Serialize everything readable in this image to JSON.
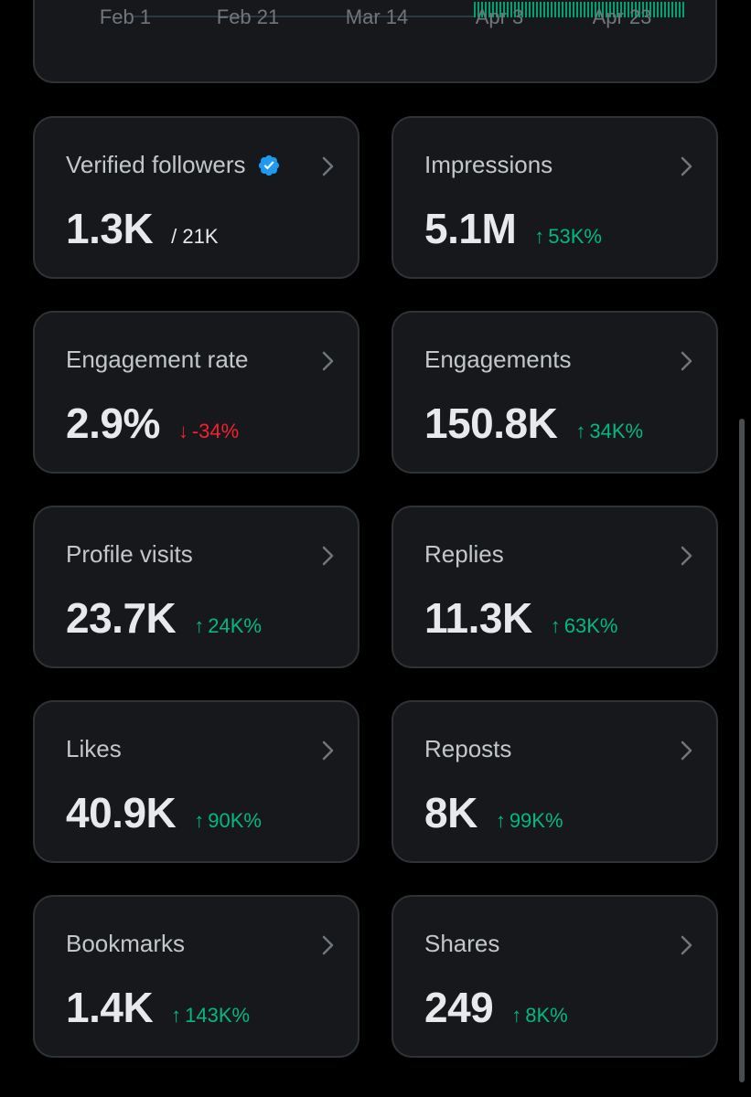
{
  "chart": {
    "x_labels": [
      "Feb 1",
      "Feb 21",
      "Mar 14",
      "Apr 3",
      "Apr 23"
    ],
    "bar_color": "#1d9bf0",
    "accent_color": "#00ba7c"
  },
  "metrics": [
    {
      "label": "Verified followers",
      "value": "1.3K",
      "delta": "/ 21K",
      "direction": "neutral",
      "verified": true
    },
    {
      "label": "Impressions",
      "value": "5.1M",
      "delta": "53K%",
      "direction": "up"
    },
    {
      "label": "Engagement rate",
      "value": "2.9%",
      "delta": "-34%",
      "direction": "down"
    },
    {
      "label": "Engagements",
      "value": "150.8K",
      "delta": "34K%",
      "direction": "up"
    },
    {
      "label": "Profile visits",
      "value": "23.7K",
      "delta": "24K%",
      "direction": "up"
    },
    {
      "label": "Replies",
      "value": "11.3K",
      "delta": "63K%",
      "direction": "up"
    },
    {
      "label": "Likes",
      "value": "40.9K",
      "delta": "90K%",
      "direction": "up"
    },
    {
      "label": "Reposts",
      "value": "8K",
      "delta": "99K%",
      "direction": "up"
    },
    {
      "label": "Bookmarks",
      "value": "1.4K",
      "delta": "143K%",
      "direction": "up"
    },
    {
      "label": "Shares",
      "value": "249",
      "delta": "8K%",
      "direction": "up"
    }
  ],
  "colors": {
    "background": "#000000",
    "card": "#16181c",
    "border": "#2f3336",
    "up": "#00ba7c",
    "down": "#f4212e",
    "verified": "#1d9bf0"
  },
  "icons": {
    "chevron": "chevron-right-icon",
    "verified": "verified-badge-icon"
  }
}
